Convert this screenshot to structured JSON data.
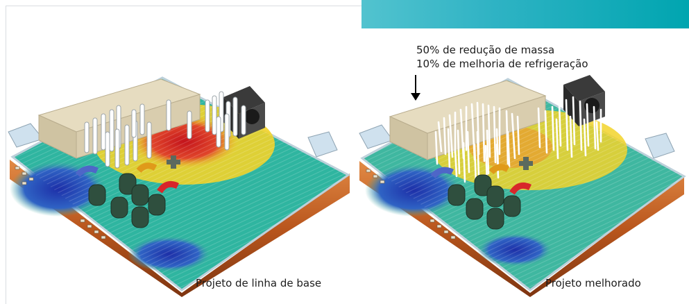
{
  "banner": {
    "color": "#00a5b0"
  },
  "stats": [
    "50% de redução de massa",
    "10% de melhoria de refrigeração"
  ],
  "captions": {
    "baseline": "Projeto de linha de base",
    "improved": "Projeto melhorado"
  },
  "illustration": {
    "subject": "electronics enclosure thermal flow simulation",
    "baseline_pin_count": 22,
    "improved_pin_count": 44,
    "colors": {
      "hot": "#d9262a",
      "warm": "#f2d32a",
      "cool": "#3fae9f",
      "cold": "#1f3fb0",
      "housing": "#c56a2a"
    }
  }
}
